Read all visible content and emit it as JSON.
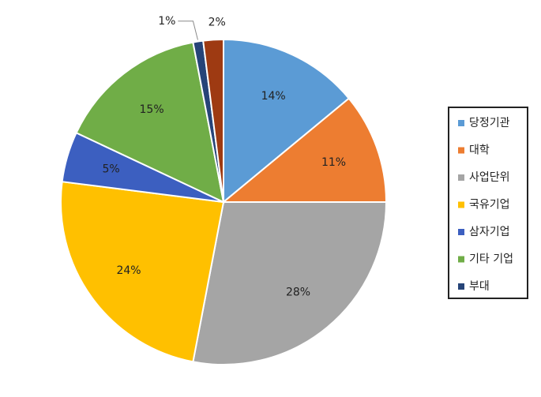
{
  "chart_data": {
    "type": "pie",
    "categories": [
      "당정기관",
      "대학",
      "사업단위",
      "국유기업",
      "삼자기업",
      "기타 기업",
      "부대",
      null
    ],
    "values": [
      14,
      11,
      28,
      24,
      5,
      15,
      1,
      2
    ],
    "value_labels": [
      "14%",
      "11%",
      "28%",
      "24%",
      "5%",
      "15%",
      "1%",
      "2%"
    ],
    "colors": [
      "#5b9bd5",
      "#ed7d31",
      "#a5a5a5",
      "#ffc000",
      "#3c5fc0",
      "#70ad47",
      "#264478",
      "#9e3a12"
    ],
    "legend": "right"
  }
}
